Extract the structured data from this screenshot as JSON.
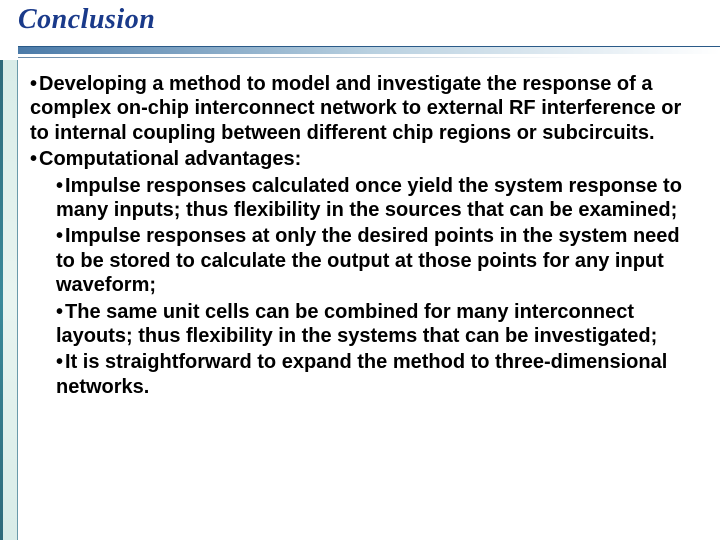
{
  "title": "Conclusion",
  "colors": {
    "title_text": "#1a3a8a",
    "body_text": "#000000",
    "background": "#ffffff",
    "underline_start": "#4a7aa8",
    "underline_mid": "#b8d0e0",
    "left_strip_dark": "#2e6a7a",
    "left_strip_light": "#e8f4f0"
  },
  "typography": {
    "title_fontsize": 28,
    "title_style": "bold italic serif",
    "body_fontsize": 20,
    "body_weight": "bold",
    "body_family": "Arial"
  },
  "bullets": [
    {
      "level": 1,
      "text": "Developing a method to model and investigate the response of a complex on-chip interconnect network to external RF interference or to internal coupling between different chip regions or subcircuits."
    },
    {
      "level": 1,
      "text": "Computational advantages:"
    },
    {
      "level": 2,
      "text": "Impulse responses calculated once yield the system response to many inputs; thus flexibility in the sources that can be examined;"
    },
    {
      "level": 2,
      "text": "Impulse responses at only the desired points in the system need to be stored to calculate the output at those points for any input waveform;"
    },
    {
      "level": 2,
      "text": "The same unit cells can be combined for many interconnect layouts; thus flexibility in the systems that can be investigated;"
    },
    {
      "level": 2,
      "text": "It is straightforward to expand the method to three-dimensional networks."
    }
  ]
}
